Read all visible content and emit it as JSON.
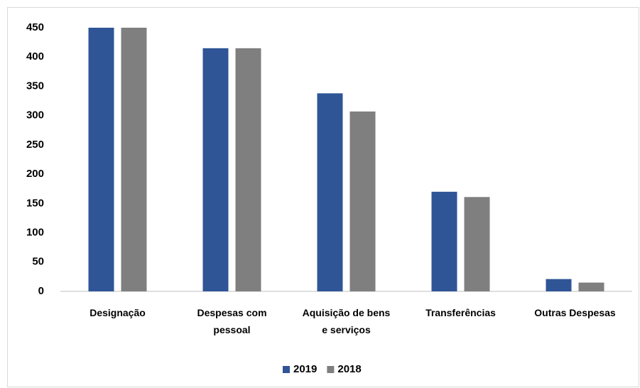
{
  "chart_data": {
    "type": "bar",
    "categories": [
      "Designação",
      "Despesas com pessoal",
      "Aquisição de bens e serviços",
      "Transferências",
      "Outras Despesas"
    ],
    "series": [
      {
        "name": "2019",
        "color": "#2f5597",
        "values": [
          450,
          415,
          338,
          170,
          21
        ]
      },
      {
        "name": "2018",
        "color": "#7f7f7f",
        "values": [
          450,
          415,
          307,
          161,
          15
        ]
      }
    ],
    "ylim": [
      0,
      450
    ],
    "yticks": [
      0,
      50,
      100,
      150,
      200,
      250,
      300,
      350,
      400,
      450
    ],
    "grid": false,
    "legend": "bottom"
  }
}
